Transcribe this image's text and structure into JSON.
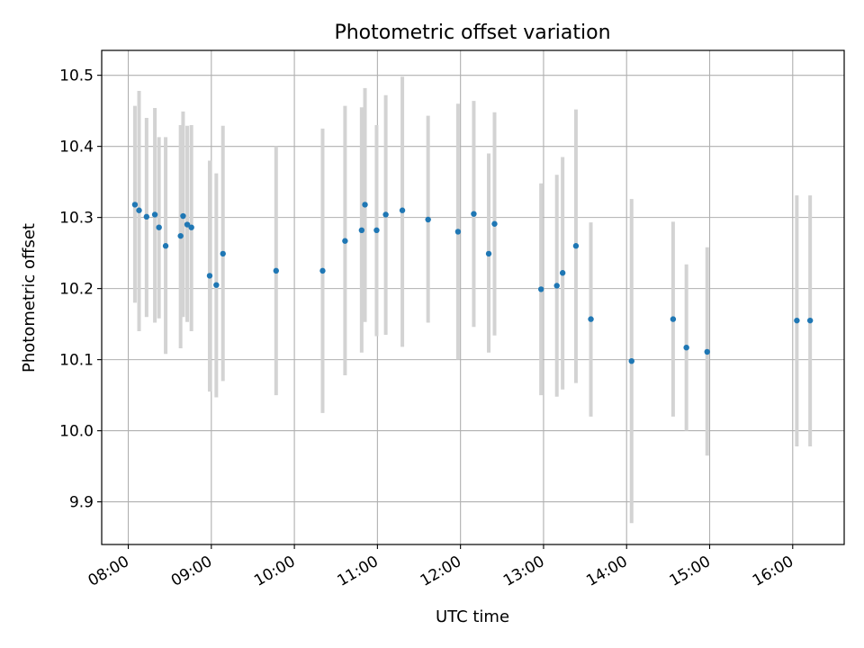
{
  "chart_data": {
    "type": "scatter",
    "title": "Photometric offset variation",
    "xlabel": "UTC time",
    "ylabel": "Photometric offset",
    "xlim": [
      7.68,
      16.62
    ],
    "ylim": [
      9.84,
      10.535
    ],
    "xticks": [
      8,
      9,
      10,
      11,
      12,
      13,
      14,
      15,
      16
    ],
    "xtick_labels": [
      "08:00",
      "09:00",
      "10:00",
      "11:00",
      "12:00",
      "13:00",
      "14:00",
      "15:00",
      "16:00"
    ],
    "yticks": [
      9.9,
      10.0,
      10.1,
      10.2,
      10.3,
      10.4,
      10.5
    ],
    "ytick_labels": [
      "9.9",
      "10.0",
      "10.1",
      "10.2",
      "10.3",
      "10.4",
      "10.5"
    ],
    "grid": true,
    "point_color": "#1f77b4",
    "errorbar_color": "#d3d3d3",
    "points": [
      {
        "x": 8.08,
        "y": 10.318,
        "low": 10.18,
        "high": 10.457
      },
      {
        "x": 8.13,
        "y": 10.31,
        "low": 10.14,
        "high": 10.478
      },
      {
        "x": 8.22,
        "y": 10.301,
        "low": 10.16,
        "high": 10.44
      },
      {
        "x": 8.32,
        "y": 10.304,
        "low": 10.152,
        "high": 10.454
      },
      {
        "x": 8.37,
        "y": 10.286,
        "low": 10.158,
        "high": 10.413
      },
      {
        "x": 8.45,
        "y": 10.26,
        "low": 10.108,
        "high": 10.413
      },
      {
        "x": 8.63,
        "y": 10.274,
        "low": 10.116,
        "high": 10.43
      },
      {
        "x": 8.66,
        "y": 10.302,
        "low": 10.16,
        "high": 10.449
      },
      {
        "x": 8.71,
        "y": 10.29,
        "low": 10.153,
        "high": 10.429
      },
      {
        "x": 8.76,
        "y": 10.286,
        "low": 10.14,
        "high": 10.43
      },
      {
        "x": 8.98,
        "y": 10.218,
        "low": 10.055,
        "high": 10.38
      },
      {
        "x": 9.06,
        "y": 10.205,
        "low": 10.047,
        "high": 10.362
      },
      {
        "x": 9.14,
        "y": 10.249,
        "low": 10.07,
        "high": 10.429
      },
      {
        "x": 9.78,
        "y": 10.225,
        "low": 10.05,
        "high": 10.4
      },
      {
        "x": 10.34,
        "y": 10.225,
        "low": 10.025,
        "high": 10.425
      },
      {
        "x": 10.61,
        "y": 10.267,
        "low": 10.078,
        "high": 10.457
      },
      {
        "x": 10.81,
        "y": 10.282,
        "low": 10.11,
        "high": 10.455
      },
      {
        "x": 10.85,
        "y": 10.318,
        "low": 10.153,
        "high": 10.482
      },
      {
        "x": 10.99,
        "y": 10.282,
        "low": 10.133,
        "high": 10.43
      },
      {
        "x": 11.1,
        "y": 10.304,
        "low": 10.135,
        "high": 10.472
      },
      {
        "x": 11.3,
        "y": 10.31,
        "low": 10.118,
        "high": 10.498
      },
      {
        "x": 11.61,
        "y": 10.297,
        "low": 10.152,
        "high": 10.443
      },
      {
        "x": 11.97,
        "y": 10.28,
        "low": 10.1,
        "high": 10.46
      },
      {
        "x": 12.16,
        "y": 10.305,
        "low": 10.146,
        "high": 10.464
      },
      {
        "x": 12.34,
        "y": 10.249,
        "low": 10.11,
        "high": 10.39
      },
      {
        "x": 12.41,
        "y": 10.291,
        "low": 10.134,
        "high": 10.448
      },
      {
        "x": 12.97,
        "y": 10.199,
        "low": 10.05,
        "high": 10.348
      },
      {
        "x": 13.16,
        "y": 10.204,
        "low": 10.048,
        "high": 10.36
      },
      {
        "x": 13.23,
        "y": 10.222,
        "low": 10.058,
        "high": 10.385
      },
      {
        "x": 13.39,
        "y": 10.26,
        "low": 10.067,
        "high": 10.452
      },
      {
        "x": 13.57,
        "y": 10.157,
        "low": 10.02,
        "high": 10.293
      },
      {
        "x": 14.06,
        "y": 10.098,
        "low": 9.87,
        "high": 10.326
      },
      {
        "x": 14.56,
        "y": 10.157,
        "low": 10.02,
        "high": 10.294
      },
      {
        "x": 14.72,
        "y": 10.117,
        "low": 10.0,
        "high": 10.234
      },
      {
        "x": 14.97,
        "y": 10.111,
        "low": 9.965,
        "high": 10.258
      },
      {
        "x": 16.05,
        "y": 10.155,
        "low": 9.978,
        "high": 10.331
      },
      {
        "x": 16.21,
        "y": 10.155,
        "low": 9.978,
        "high": 10.331
      }
    ]
  }
}
